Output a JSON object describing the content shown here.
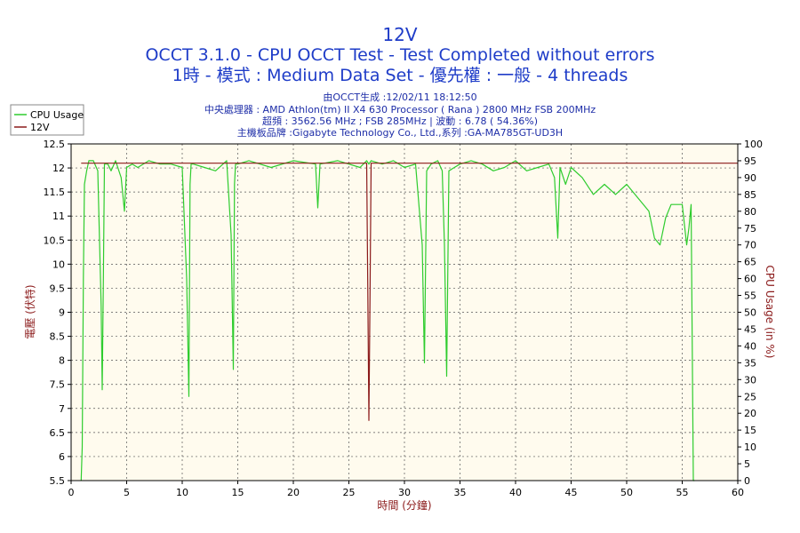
{
  "header": {
    "title": "12V",
    "subtitle1": "OCCT 3.1.0 - CPU OCCT Test - Test Completed without errors",
    "subtitle2": "1時 - 模式 : Medium Data Set - 優先權 : 一般 - 4 threads"
  },
  "info": {
    "line1": "由OCCT生成 :12/02/11 18:12:50",
    "line2": "中央處理器 : AMD Athlon(tm) II X4 630 Processor ( Rana ) 2800 MHz FSB 200MHz",
    "line3": "超頻 : 3562.56 MHz ; FSB 285MHz | 波動 : 6.78 ( 54.36%)",
    "line4": "主機板品牌 :Gigabyte Technology Co., Ltd.,系列 :GA-MA785GT-UD3H"
  },
  "legend": {
    "cpu_label": "CPU Usage",
    "v12_label": "12V"
  },
  "colors": {
    "cpu": "#2ecc2e",
    "v12": "#8b1a1a",
    "plot_bg": "#fffbee",
    "grid": "#555555",
    "title": "#1e3cc8",
    "info": "#1e2ea8"
  },
  "chart_data": {
    "type": "line",
    "xlabel": "時間 (分鐘)",
    "ylabel": "電壓 (伏特)",
    "ylabel_right": "CPU Usage (in %)",
    "xlim": [
      0,
      60
    ],
    "ylim": [
      5.5,
      12.5
    ],
    "ylim_right": [
      0,
      100
    ],
    "x_ticks": [
      0,
      5,
      10,
      15,
      20,
      25,
      30,
      35,
      40,
      45,
      50,
      55,
      60
    ],
    "y_ticks": [
      5.5,
      6,
      6.5,
      7,
      7.5,
      8,
      8.5,
      9,
      9.5,
      10,
      10.5,
      11,
      11.5,
      12,
      12.5
    ],
    "y_right_ticks": [
      0,
      5,
      10,
      15,
      20,
      25,
      30,
      35,
      40,
      45,
      50,
      55,
      60,
      65,
      70,
      75,
      80,
      85,
      90,
      95,
      100
    ],
    "grid": true,
    "legend_position": "top-left",
    "series": [
      {
        "name": "CPU Usage",
        "axis": "right",
        "x": [
          0.9,
          1.0,
          1.1,
          1.2,
          1.4,
          1.6,
          2.0,
          2.4,
          2.7,
          2.8,
          2.9,
          3.0,
          3.3,
          3.6,
          4.0,
          4.5,
          4.8,
          5.0,
          5.5,
          6.0,
          7.0,
          8.0,
          9.0,
          10.0,
          10.4,
          10.6,
          10.7,
          10.8,
          11.0,
          12.0,
          13.0,
          14.0,
          14.4,
          14.6,
          14.7,
          14.8,
          15.0,
          16.0,
          17.0,
          18.0,
          20.0,
          22.0,
          22.2,
          22.4,
          24.0,
          25.0,
          26.0,
          26.6,
          26.8,
          27.0,
          28.0,
          29.0,
          30.0,
          31.0,
          31.6,
          31.8,
          32.0,
          32.4,
          33.0,
          33.4,
          33.6,
          33.8,
          34.0,
          35.0,
          36.0,
          37.0,
          38.0,
          39.0,
          40.0,
          41.0,
          42.0,
          43.0,
          43.5,
          43.8,
          44.0,
          44.5,
          45.0,
          46.0,
          47.0,
          48.0,
          49.0,
          50.0,
          51.0,
          52.0,
          52.5,
          53.0,
          53.5,
          54.0,
          55.0,
          55.4,
          55.6,
          55.8,
          56.0,
          56.1
        ],
        "values": [
          0,
          10,
          60,
          88,
          92,
          95,
          95,
          92,
          52,
          27,
          60,
          94,
          94,
          92,
          95,
          90,
          80,
          93,
          94,
          93,
          95,
          94,
          94,
          93,
          60,
          25,
          88,
          94,
          94,
          93,
          92,
          95,
          73,
          33,
          88,
          94,
          94,
          95,
          94,
          93,
          95,
          94,
          81,
          94,
          95,
          94,
          93,
          95,
          94,
          95,
          94,
          95,
          93,
          94,
          70,
          35,
          92,
          94,
          95,
          92,
          70,
          31,
          92,
          94,
          95,
          94,
          92,
          93,
          95,
          92,
          93,
          94,
          90,
          72,
          93,
          88,
          93,
          90,
          85,
          88,
          85,
          88,
          84,
          80,
          72,
          70,
          78,
          82,
          82,
          70,
          75,
          82,
          0,
          0
        ]
      },
      {
        "name": "12V",
        "axis": "left",
        "x": [
          0.9,
          26.6,
          26.7,
          26.8,
          26.9,
          27.0,
          60.0
        ],
        "values": [
          12.1,
          12.1,
          9.4,
          6.75,
          9.4,
          12.1,
          12.1
        ]
      }
    ]
  }
}
